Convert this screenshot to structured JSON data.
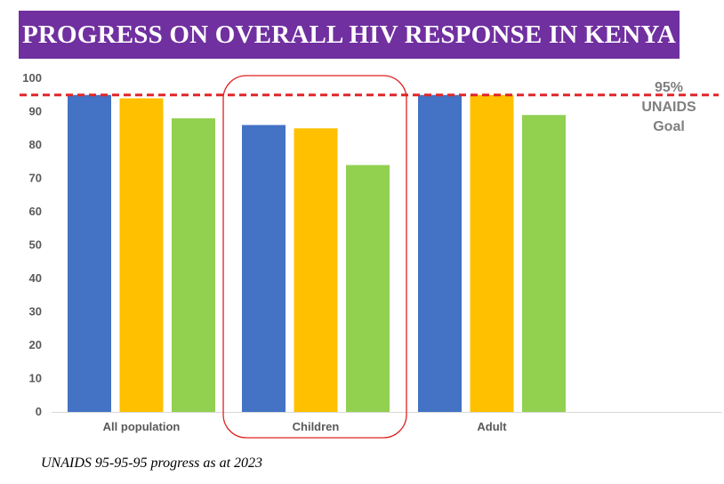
{
  "banner": {
    "title": "PROGRESS ON OVERALL HIV RESPONSE IN KENYA"
  },
  "caption": "UNAIDS 95-95-95 progress as at 2023",
  "goal": {
    "percent_label": "95%",
    "line1": "UNAIDS",
    "line2": "Goal",
    "value": 95,
    "color": "#e0262a"
  },
  "chart_data": {
    "type": "bar",
    "title": "PROGRESS ON OVERALL HIV RESPONSE IN KENYA",
    "categories": [
      "All population",
      "Children",
      "Adult"
    ],
    "series": [
      {
        "values": [
          95,
          86,
          95
        ],
        "color": "#4472c4"
      },
      {
        "values": [
          94,
          85,
          95
        ],
        "color": "#ffc000"
      },
      {
        "values": [
          88,
          74,
          89
        ],
        "color": "#92d050"
      }
    ],
    "ylim": [
      0,
      100
    ],
    "yticks": [
      0,
      10,
      20,
      30,
      40,
      50,
      60,
      70,
      80,
      90,
      100
    ],
    "grid": false,
    "reference_line": 95,
    "highlight_category": "Children"
  }
}
